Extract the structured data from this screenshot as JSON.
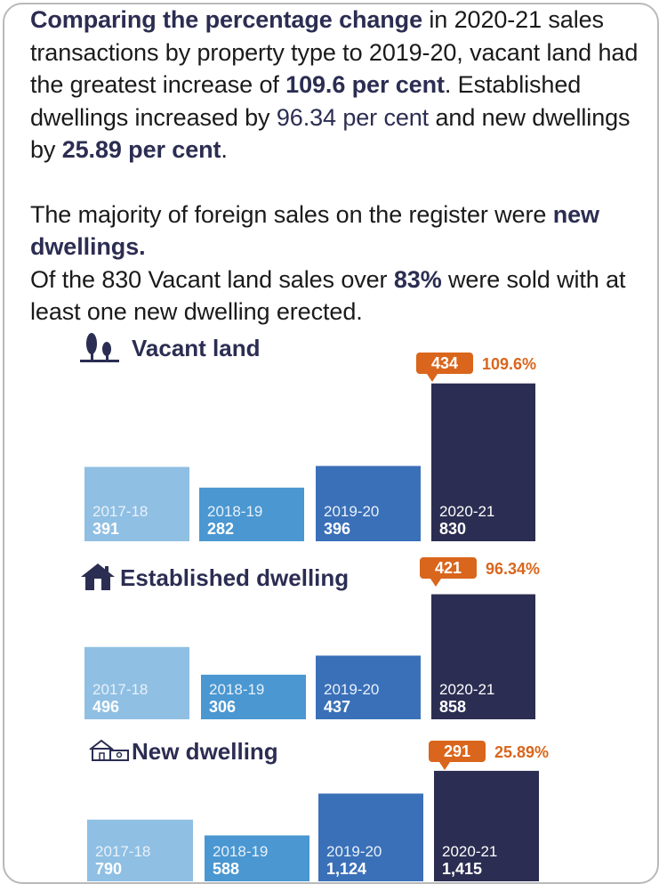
{
  "intro": {
    "p1_bold_a": "Comparing the percentage change",
    "p1_a": " in 2020-21 sales transactions by property type to 2019-20, vacant land had the greatest increase of ",
    "p1_bold_b": "109.6 per cent",
    "p1_b": ". Established dwellings increased by ",
    "p1_plain_hl": "96.34 per cent",
    "p1_c": " and new dwellings by ",
    "p1_bold_c": "25.89 per cent",
    "p1_d": ".",
    "p2_a": "The majority of foreign sales on the register were ",
    "p2_bold": "new dwellings.",
    "p3_a": "Of the 830 Vacant land sales over ",
    "p3_bold": "83%",
    "p3_b": " were sold with at least one new dwelling erected."
  },
  "colors": {
    "bar_2017_18": "#8fbfe3",
    "bar_2018_19": "#4a97d1",
    "bar_2019_20": "#3a70b8",
    "bar_2020_21": "#2b2d52",
    "callout": "#d9661c",
    "title": "#2b2d52"
  },
  "chart_data": [
    {
      "type": "bar",
      "title": "Vacant land",
      "icon": "trees-icon",
      "categories": [
        "2017-18",
        "2018-19",
        "2019-20",
        "2020-21"
      ],
      "values": [
        391,
        282,
        396,
        830
      ],
      "value_labels": [
        "391",
        "282",
        "396",
        "830"
      ],
      "increase": "434",
      "percent": "109.6%"
    },
    {
      "type": "bar",
      "title": "Established dwelling",
      "icon": "house-icon",
      "categories": [
        "2017-18",
        "2018-19",
        "2019-20",
        "2020-21"
      ],
      "values": [
        496,
        306,
        437,
        858
      ],
      "value_labels": [
        "496",
        "306",
        "437",
        "858"
      ],
      "increase": "421",
      "percent": "96.34%"
    },
    {
      "type": "bar",
      "title": "New dwelling",
      "icon": "new-house-icon",
      "categories": [
        "2017-18",
        "2018-19",
        "2019-20",
        "2020-21"
      ],
      "values": [
        790,
        588,
        1124,
        1415
      ],
      "value_labels": [
        "790",
        "588",
        "1,124",
        "1,415"
      ],
      "increase": "291",
      "percent": "25.89%"
    }
  ]
}
